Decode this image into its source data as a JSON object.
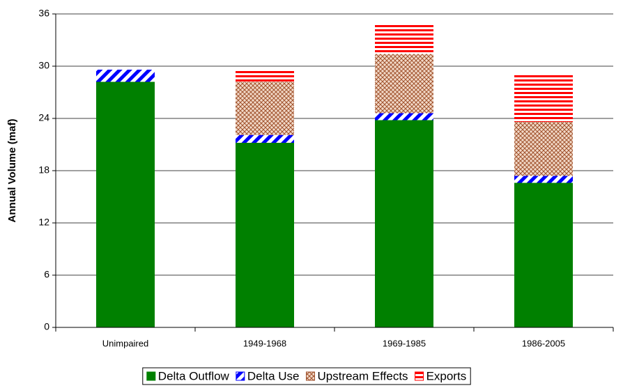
{
  "chart_data": {
    "type": "stacked-bar",
    "y_label": "Annual Volume (maf)",
    "categories": [
      "Unimpaired",
      "1949-1968",
      "1969-1985",
      "1986-2005"
    ],
    "series": [
      {
        "name": "Delta Outflow",
        "color": "#008000",
        "pattern": "solid",
        "values": [
          28.2,
          21.2,
          23.8,
          16.6
        ]
      },
      {
        "name": "Delta Use",
        "color": "#0000ff",
        "pattern": "diagonal",
        "values": [
          1.4,
          0.9,
          0.8,
          0.8
        ]
      },
      {
        "name": "Upstream Effects",
        "color": "#a0522d",
        "pattern": "crosshatch",
        "values": [
          0,
          6.1,
          6.8,
          6.2
        ]
      },
      {
        "name": "Exports",
        "color": "#ff0000",
        "pattern": "horizontal",
        "values": [
          0,
          1.3,
          3.4,
          5.4
        ]
      }
    ],
    "ylim": [
      0,
      36
    ],
    "yticks": [
      0,
      6,
      12,
      18,
      24,
      30,
      36
    ],
    "grid": true,
    "legend": "bottom"
  }
}
